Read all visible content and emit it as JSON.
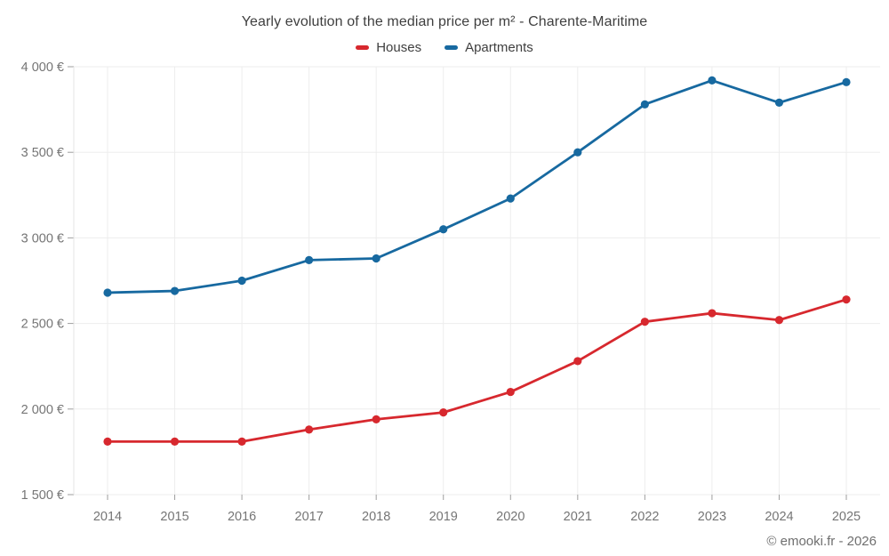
{
  "chart": {
    "title": "Yearly evolution of the median price per m² - Charente-Maritime"
  },
  "footer": {
    "copyright": "© emooki.fr - 2026"
  },
  "chart_data": {
    "type": "line",
    "title": "Yearly evolution of the median price per m² - Charente-Maritime",
    "categories": [
      "2014",
      "2015",
      "2016",
      "2017",
      "2018",
      "2019",
      "2020",
      "2021",
      "2022",
      "2023",
      "2024",
      "2025"
    ],
    "series": [
      {
        "name": "Houses",
        "color": "#d7282e",
        "values": [
          1810,
          1810,
          1810,
          1880,
          1940,
          1980,
          2100,
          2280,
          2510,
          2560,
          2520,
          2640
        ]
      },
      {
        "name": "Apartments",
        "color": "#1769a0",
        "values": [
          2680,
          2690,
          2750,
          2870,
          2880,
          3050,
          3230,
          3500,
          3780,
          3920,
          3790,
          3910
        ]
      }
    ],
    "xlabel": "",
    "ylabel": "",
    "ylim": [
      1500,
      4000
    ],
    "y_ticks": [
      {
        "value": 1500,
        "label": "1 500 €"
      },
      {
        "value": 2000,
        "label": "2 000 €"
      },
      {
        "value": 2500,
        "label": "2 500 €"
      },
      {
        "value": 3000,
        "label": "3 000 €"
      },
      {
        "value": 3500,
        "label": "3 500 €"
      },
      {
        "value": 4000,
        "label": "4 000 €"
      }
    ],
    "grid": true,
    "legend_position": "top",
    "colors": {
      "grid_line": "#ededed",
      "tick_mark": "#9e9e9e",
      "axis_label": "#757575"
    }
  }
}
